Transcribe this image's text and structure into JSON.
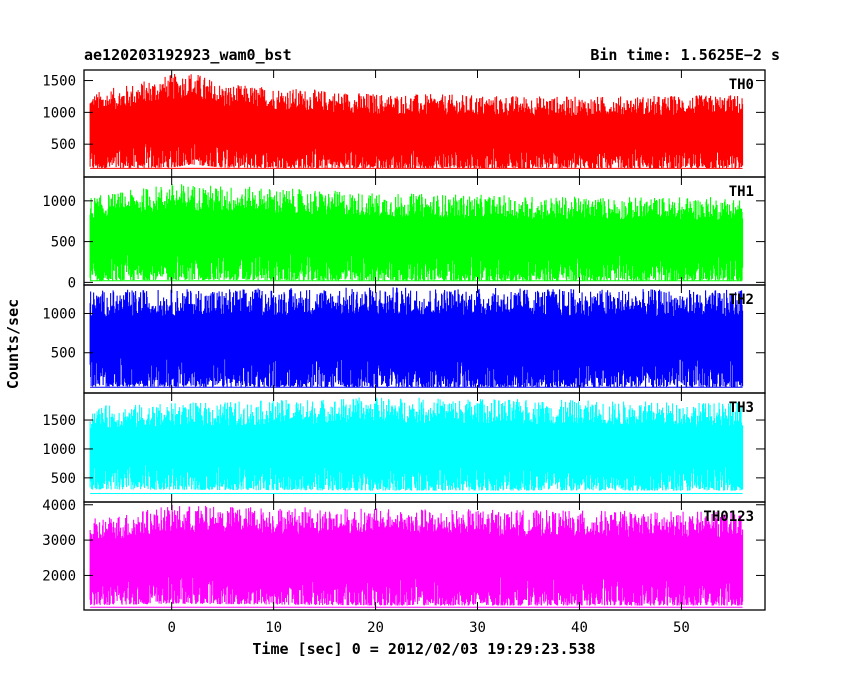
{
  "header": {
    "left_title": "ae120203192923_wam0_bst",
    "right_title": "Bin time: 1.5625E−2 s"
  },
  "chart_data": {
    "type": "line",
    "xlabel": "Time [sec] 0 = 2012/02/03 19:29:23.538",
    "ylabel": "Counts/sec",
    "xlim": [
      -8.6,
      58.2
    ],
    "x_data_range": [
      -8,
      56
    ],
    "xticks": [
      0,
      10,
      20,
      30,
      40,
      50
    ],
    "xtick_labels": [
      "0",
      "10",
      "20",
      "30",
      "40",
      "50"
    ],
    "panels": [
      {
        "name": "TH0",
        "color": "#ff0000",
        "ylim": [
          0,
          1650
        ],
        "yticks": [
          500,
          1000,
          1500
        ],
        "ytick_labels": [
          "500",
          "1000",
          "1500"
        ],
        "baseline": 120,
        "trace_profile": [
          {
            "t": -8,
            "low": 120,
            "high": 1300
          },
          {
            "t": 0,
            "low": 130,
            "high": 1600
          },
          {
            "t": 2,
            "low": 180,
            "high": 1650
          },
          {
            "t": 5,
            "low": 130,
            "high": 1450
          },
          {
            "t": 20,
            "low": 120,
            "high": 1300
          },
          {
            "t": 40,
            "low": 120,
            "high": 1250
          },
          {
            "t": 56,
            "low": 120,
            "high": 1280
          }
        ]
      },
      {
        "name": "TH1",
        "color": "#00ff00",
        "ylim": [
          -20,
          1280
        ],
        "yticks": [
          0,
          500,
          1000
        ],
        "ytick_labels": [
          "0",
          "500",
          "1000"
        ],
        "baseline": 20,
        "trace_profile": [
          {
            "t": -8,
            "low": 20,
            "high": 1050
          },
          {
            "t": 0,
            "low": 30,
            "high": 1220
          },
          {
            "t": 20,
            "low": 20,
            "high": 1100
          },
          {
            "t": 40,
            "low": 20,
            "high": 1050
          },
          {
            "t": 56,
            "low": 20,
            "high": 1050
          }
        ]
      },
      {
        "name": "TH2",
        "color": "#0000ff",
        "ylim": [
          0,
          1350
        ],
        "yticks": [
          500,
          1000
        ],
        "ytick_labels": [
          "500",
          "1000"
        ],
        "baseline": 60,
        "trace_profile": [
          {
            "t": -8,
            "low": 70,
            "high": 1300
          },
          {
            "t": 20,
            "low": 60,
            "high": 1340
          },
          {
            "t": 56,
            "low": 60,
            "high": 1300
          }
        ]
      },
      {
        "name": "TH3",
        "color": "#00ffff",
        "ylim": [
          100,
          1950
        ],
        "yticks": [
          500,
          1000,
          1500
        ],
        "ytick_labels": [
          "500",
          "1000",
          "1500"
        ],
        "baseline": 230,
        "trace_profile": [
          {
            "t": -8,
            "low": 300,
            "high": 1750
          },
          {
            "t": 20,
            "low": 280,
            "high": 1900
          },
          {
            "t": 56,
            "low": 280,
            "high": 1800
          }
        ]
      },
      {
        "name": "TH0123",
        "color": "#ff00ff",
        "ylim": [
          1050,
          4050
        ],
        "yticks": [
          2000,
          3000,
          4000
        ],
        "ytick_labels": [
          "2000",
          "3000",
          "4000"
        ],
        "baseline": 1100,
        "trace_profile": [
          {
            "t": -8,
            "low": 1150,
            "high": 3600
          },
          {
            "t": 0,
            "low": 1200,
            "high": 4000
          },
          {
            "t": 20,
            "low": 1150,
            "high": 3900
          },
          {
            "t": 56,
            "low": 1150,
            "high": 3800
          }
        ]
      }
    ],
    "grid": false,
    "legend": "panel labels top-right"
  }
}
